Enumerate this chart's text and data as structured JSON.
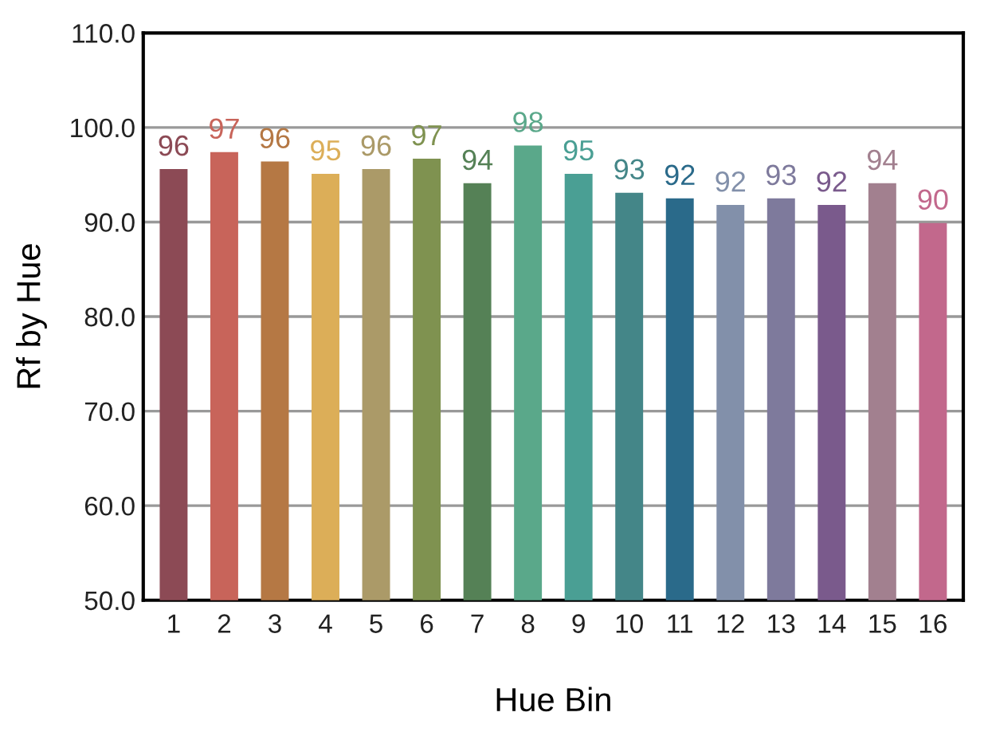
{
  "chart_data": {
    "type": "bar",
    "xlabel": "Hue Bin",
    "ylabel": "Rf by Hue",
    "categories": [
      "1",
      "2",
      "3",
      "4",
      "5",
      "6",
      "7",
      "8",
      "9",
      "10",
      "11",
      "12",
      "13",
      "14",
      "15",
      "16"
    ],
    "values": [
      95.6,
      97.4,
      96.4,
      95.1,
      95.6,
      96.7,
      94.1,
      98.1,
      95.1,
      93.1,
      92.5,
      91.8,
      92.5,
      91.8,
      94.1,
      89.9
    ],
    "value_labels": [
      "96",
      "97",
      "96",
      "95",
      "96",
      "97",
      "94",
      "98",
      "95",
      "93",
      "92",
      "92",
      "93",
      "92",
      "94",
      "90"
    ],
    "colors": [
      "#8c4a55",
      "#c8645a",
      "#b57844",
      "#dcae58",
      "#ab9a68",
      "#7f9250",
      "#558156",
      "#5aa88a",
      "#4a9f94",
      "#448688",
      "#2a6a8a",
      "#8290aa",
      "#7e7a9c",
      "#7a5a8c",
      "#a2808f",
      "#c2688c"
    ],
    "ylim": [
      50,
      110
    ],
    "yticks": [
      {
        "value": 50,
        "label": "50.0"
      },
      {
        "value": 60,
        "label": "60.0"
      },
      {
        "value": 70,
        "label": "70.0"
      },
      {
        "value": 80,
        "label": "80.0"
      },
      {
        "value": 90,
        "label": "90.0"
      },
      {
        "value": 100,
        "label": "100.0"
      },
      {
        "value": 110,
        "label": "110.0"
      }
    ],
    "grid": "y"
  }
}
